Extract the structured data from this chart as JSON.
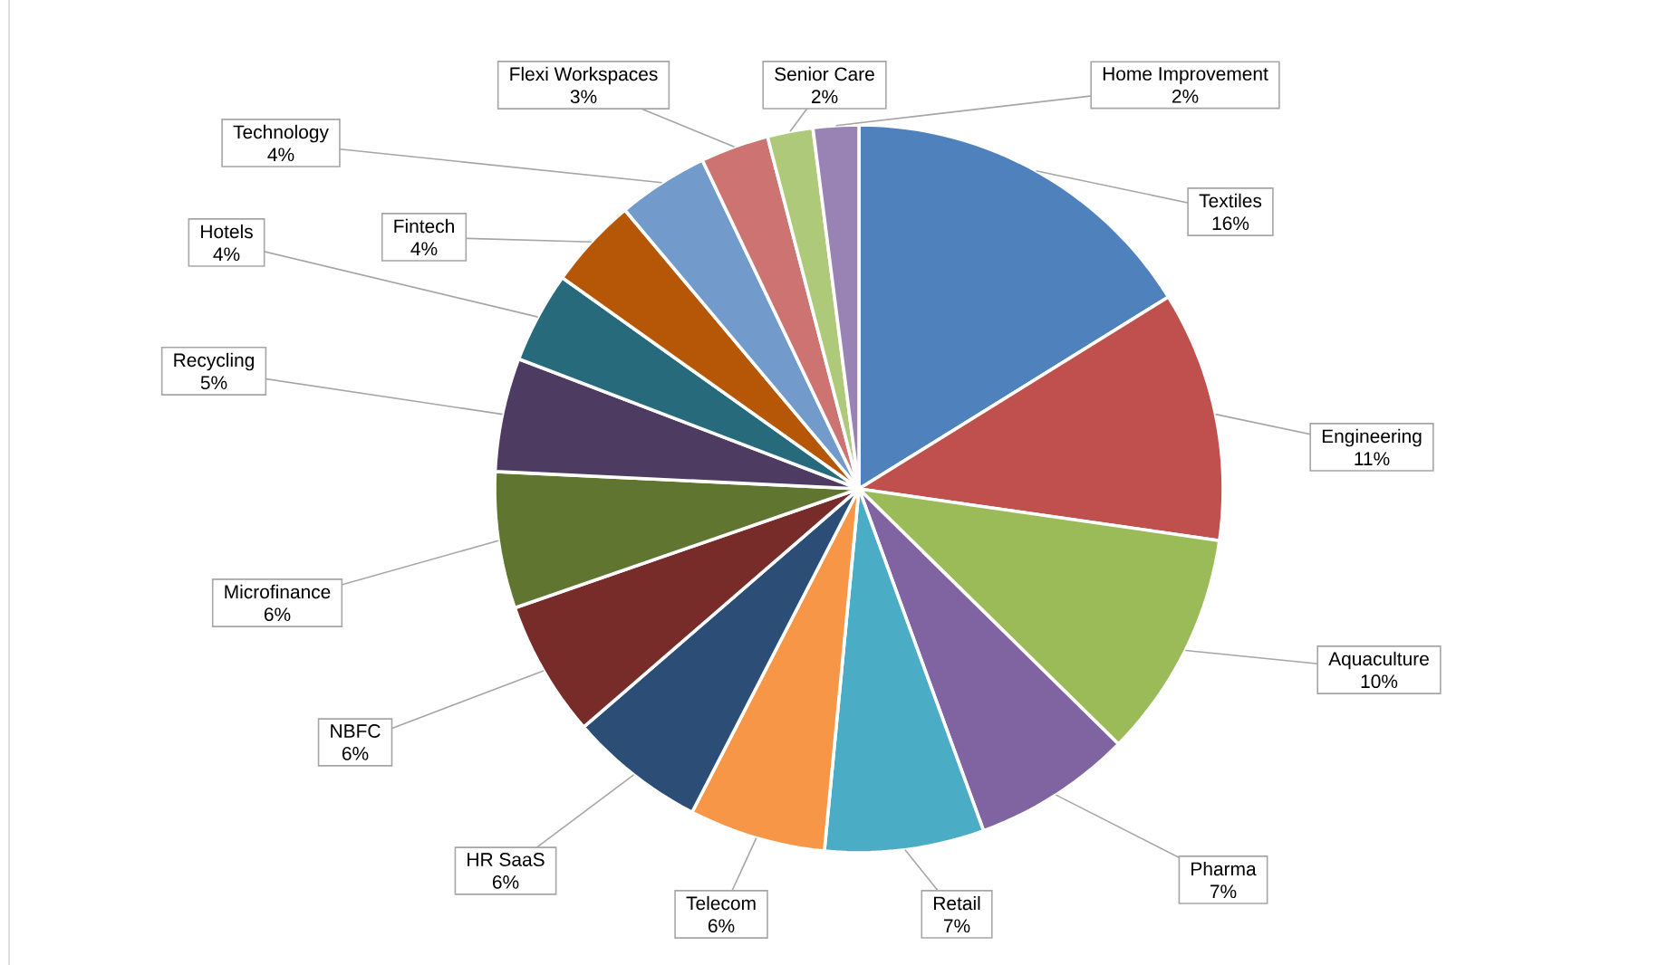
{
  "chart_data": {
    "type": "pie",
    "categories": [
      "Textiles",
      "Engineering",
      "Aquaculture",
      "Pharma",
      "Retail",
      "Telecom",
      "HR SaaS",
      "NBFC",
      "Microfinance",
      "Recycling",
      "Hotels",
      "Fintech",
      "Technology",
      "Flexi Workspaces",
      "Senior Care",
      "Home Improvement"
    ],
    "values": [
      16,
      11,
      10,
      7,
      7,
      6,
      6,
      6,
      6,
      5,
      4,
      4,
      4,
      3,
      2,
      2
    ],
    "value_labels": [
      "16%",
      "11%",
      "10%",
      "7%",
      "7%",
      "6%",
      "6%",
      "6%",
      "6%",
      "5%",
      "4%",
      "4%",
      "4%",
      "3%",
      "2%",
      "2%"
    ],
    "colors": [
      "#4f81bd",
      "#c0504d",
      "#9bbb59",
      "#8064a2",
      "#4bacc6",
      "#f79646",
      "#2c4d75",
      "#772c2a",
      "#5f7530",
      "#4d3b62",
      "#276a7c",
      "#b65708",
      "#729aca",
      "#cd7371",
      "#afc97a",
      "#9983b5"
    ]
  }
}
